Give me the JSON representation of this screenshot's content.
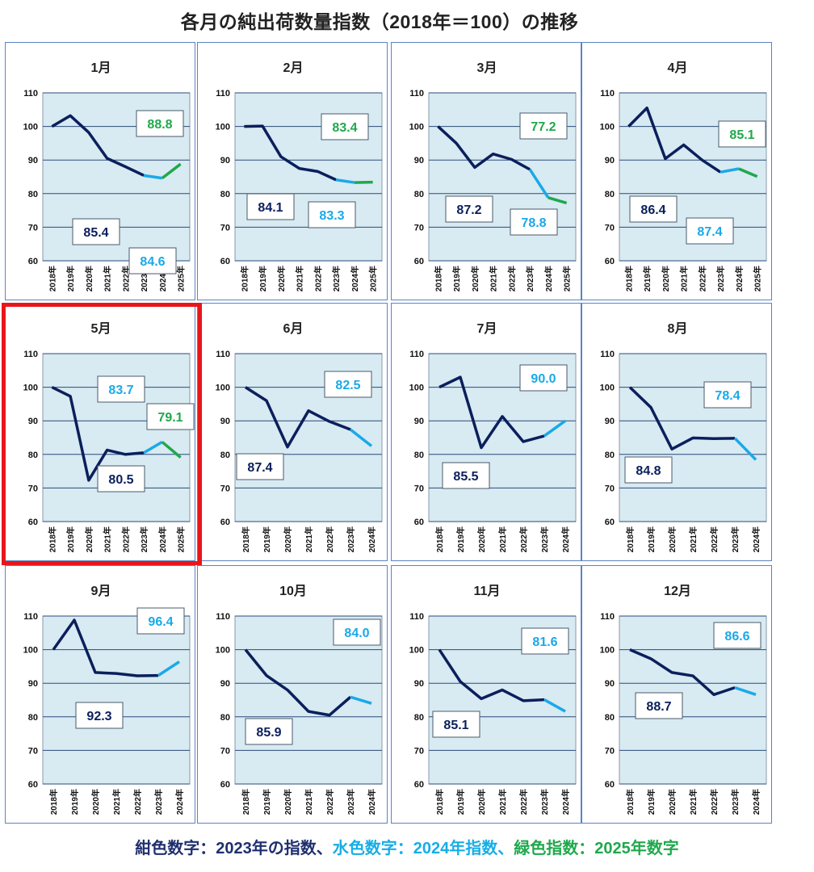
{
  "title": "各月の純出荷数量指数（2018年＝100）の推移",
  "colors": {
    "navy": "#0b1f5c",
    "cyan": "#1aa9e8",
    "green": "#1fa84c",
    "plot_bg": "#d8eaf2",
    "border": "#5b84c4",
    "highlight": "#e8161b"
  },
  "legend": {
    "navy_text": "紺色数字：2023年の指数、",
    "cyan_text": "水色数字：2024年指数、",
    "green_text": "緑色指数：2025年数字"
  },
  "chart_data": [
    {
      "type": "line",
      "title": "1月",
      "ylim": [
        60,
        110
      ],
      "yticks": [
        60,
        70,
        80,
        90,
        100,
        110
      ],
      "categories": [
        "2018年",
        "2019年",
        "2020年",
        "2021年",
        "2022年",
        "2023年",
        "2024年",
        "2025年"
      ],
      "values": [
        100,
        103.2,
        98.2,
        90.5,
        88.0,
        85.4,
        84.6,
        88.8
      ],
      "labels": {
        "y2023": "85.4",
        "y2024": "84.6",
        "y2025": "88.8"
      }
    },
    {
      "type": "line",
      "title": "2月",
      "ylim": [
        60,
        110
      ],
      "yticks": [
        60,
        70,
        80,
        90,
        100,
        110
      ],
      "categories": [
        "2018年",
        "2019年",
        "2020年",
        "2021年",
        "2022年",
        "2023年",
        "2024年",
        "2025年"
      ],
      "values": [
        100,
        100.1,
        91.0,
        87.5,
        86.6,
        84.1,
        83.3,
        83.4
      ],
      "labels": {
        "y2023": "84.1",
        "y2024": "83.3",
        "y2025": "83.4"
      }
    },
    {
      "type": "line",
      "title": "3月",
      "ylim": [
        60,
        110
      ],
      "yticks": [
        60,
        70,
        80,
        90,
        100,
        110
      ],
      "categories": [
        "2018年",
        "2019年",
        "2020年",
        "2021年",
        "2022年",
        "2023年",
        "2024年",
        "2025年"
      ],
      "values": [
        100,
        95.0,
        87.8,
        91.8,
        90.2,
        87.2,
        78.8,
        77.2
      ],
      "labels": {
        "y2023": "87.2",
        "y2024": "78.8",
        "y2025": "77.2"
      }
    },
    {
      "type": "line",
      "title": "4月",
      "ylim": [
        60,
        110
      ],
      "yticks": [
        60,
        70,
        80,
        90,
        100,
        110
      ],
      "categories": [
        "2018年",
        "2019年",
        "2020年",
        "2021年",
        "2022年",
        "2023年",
        "2024年",
        "2025年"
      ],
      "values": [
        100,
        105.5,
        90.4,
        94.5,
        90.0,
        86.4,
        87.4,
        85.1
      ],
      "labels": {
        "y2023": "86.4",
        "y2024": "87.4",
        "y2025": "85.1"
      }
    },
    {
      "type": "line",
      "title": "5月",
      "ylim": [
        60,
        110
      ],
      "yticks": [
        60,
        70,
        80,
        90,
        100,
        110
      ],
      "categories": [
        "2018年",
        "2019年",
        "2020年",
        "2021年",
        "2022年",
        "2023年",
        "2024年",
        "2025年"
      ],
      "values": [
        100,
        97.3,
        72.3,
        81.3,
        80.0,
        80.5,
        83.7,
        79.1
      ],
      "labels": {
        "y2023": "80.5",
        "y2024": "83.7",
        "y2025": "79.1"
      }
    },
    {
      "type": "line",
      "title": "6月",
      "ylim": [
        60,
        110
      ],
      "yticks": [
        60,
        70,
        80,
        90,
        100,
        110
      ],
      "categories": [
        "2018年",
        "2019年",
        "2020年",
        "2021年",
        "2022年",
        "2023年",
        "2024年"
      ],
      "values": [
        100,
        96.0,
        82.2,
        93.0,
        89.8,
        87.4,
        82.5
      ],
      "labels": {
        "y2023": "87.4",
        "y2024": "82.5"
      }
    },
    {
      "type": "line",
      "title": "7月",
      "ylim": [
        60,
        110
      ],
      "yticks": [
        60,
        70,
        80,
        90,
        100,
        110
      ],
      "categories": [
        "2018年",
        "2019年",
        "2020年",
        "2021年",
        "2022年",
        "2023年",
        "2024年"
      ],
      "values": [
        100,
        103.0,
        82.0,
        91.3,
        83.8,
        85.5,
        90.0
      ],
      "labels": {
        "y2023": "85.5",
        "y2024": "90.0"
      }
    },
    {
      "type": "line",
      "title": "8月",
      "ylim": [
        60,
        110
      ],
      "yticks": [
        60,
        70,
        80,
        90,
        100,
        110
      ],
      "categories": [
        "2018年",
        "2019年",
        "2020年",
        "2021年",
        "2022年",
        "2023年",
        "2024年"
      ],
      "values": [
        100,
        94.0,
        81.6,
        84.9,
        84.7,
        84.8,
        78.4
      ],
      "labels": {
        "y2023": "84.8",
        "y2024": "78.4"
      }
    },
    {
      "type": "line",
      "title": "9月",
      "ylim": [
        60,
        110
      ],
      "yticks": [
        60,
        70,
        80,
        90,
        100,
        110
      ],
      "categories": [
        "2018年",
        "2019年",
        "2020年",
        "2021年",
        "2022年",
        "2023年",
        "2024年"
      ],
      "values": [
        100,
        108.8,
        93.2,
        92.9,
        92.2,
        92.3,
        96.4
      ],
      "labels": {
        "y2023": "92.3",
        "y2024": "96.4"
      }
    },
    {
      "type": "line",
      "title": "10月",
      "ylim": [
        60,
        110
      ],
      "yticks": [
        60,
        70,
        80,
        90,
        100,
        110
      ],
      "categories": [
        "2018年",
        "2019年",
        "2020年",
        "2021年",
        "2022年",
        "2023年",
        "2024年"
      ],
      "values": [
        100,
        92.3,
        88.0,
        81.6,
        80.5,
        85.9,
        84.0
      ],
      "labels": {
        "y2023": "85.9",
        "y2024": "84.0"
      }
    },
    {
      "type": "line",
      "title": "11月",
      "ylim": [
        60,
        110
      ],
      "yticks": [
        60,
        70,
        80,
        90,
        100,
        110
      ],
      "categories": [
        "2018年",
        "2019年",
        "2020年",
        "2021年",
        "2022年",
        "2023年",
        "2024年"
      ],
      "values": [
        100,
        90.5,
        85.4,
        88.0,
        84.8,
        85.1,
        81.6
      ],
      "labels": {
        "y2023": "85.1",
        "y2024": "81.6"
      }
    },
    {
      "type": "line",
      "title": "12月",
      "ylim": [
        60,
        110
      ],
      "yticks": [
        60,
        70,
        80,
        90,
        100,
        110
      ],
      "categories": [
        "2018年",
        "2019年",
        "2020年",
        "2021年",
        "2022年",
        "2023年",
        "2024年"
      ],
      "values": [
        100,
        97.3,
        93.2,
        92.2,
        86.6,
        88.7,
        86.6
      ],
      "labels": {
        "y2023": "88.7",
        "y2024": "86.6"
      }
    }
  ]
}
